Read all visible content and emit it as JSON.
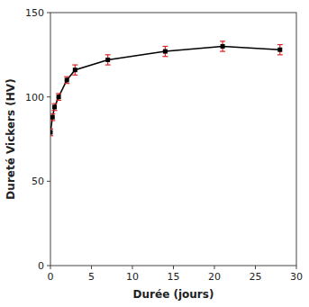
{
  "chart_data": {
    "type": "line",
    "x": [
      0,
      0.25,
      0.5,
      1,
      2,
      3,
      7,
      14,
      21,
      28
    ],
    "series": [
      {
        "color": "#000000",
        "marker": "square",
        "values": [
          79,
          88,
          94,
          100,
          110,
          116,
          122,
          127,
          130,
          128
        ],
        "errors": [
          2,
          2,
          2,
          2,
          2,
          3,
          3,
          3,
          3,
          3
        ]
      }
    ],
    "xlabel": "Durée (jours)",
    "ylabel": "Dureté Vickers (HV)",
    "xlim": [
      0,
      30
    ],
    "ylim": [
      0,
      150
    ],
    "xticks": [
      0,
      5,
      10,
      15,
      20,
      25,
      30
    ],
    "yticks": [
      0,
      50,
      100,
      150
    ],
    "grid": false
  }
}
